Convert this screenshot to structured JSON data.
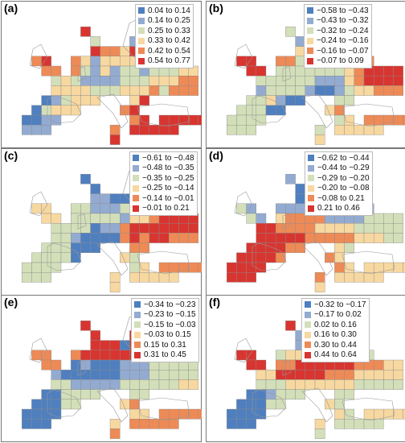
{
  "colors": [
    "#4f7fbf",
    "#93abd1",
    "#d3dfb9",
    "#f7d8a0",
    "#ee8a56",
    "#d83530"
  ],
  "panels": [
    {
      "label": "(a)",
      "legend": [
        "0.04 to 0.14",
        "0.14 to 0.25",
        "0.25 to 0.33",
        "0.33 to 0.42",
        "0.42 to 0.54",
        "0.54 to 0.77"
      ]
    },
    {
      "label": "(b)",
      "legend": [
        "−0.58 to −0.43",
        "−0.43 to −0.32",
        "−0.32 to −0.24",
        "−0.24 to −0.16",
        "−0.16 to −0.07",
        "−0.07 to  0.09"
      ]
    },
    {
      "label": "(c)",
      "legend": [
        "−0.61 to −0.48",
        "−0.48 to −0.35",
        "−0.35 to −0.25",
        "−0.25 to −0.14",
        "−0.14 to −0.01",
        "−0.01 to  0.21"
      ]
    },
    {
      "label": "(d)",
      "legend": [
        "−0.62 to −0.44",
        "−0.44 to −0.29",
        "−0.29 to −0.20",
        "−0.20 to −0.08",
        "−0.08 to  0.21",
        " 0.21 to  0.46"
      ]
    },
    {
      "label": "(e)",
      "legend": [
        "−0.34 to −0.23",
        "−0.23 to −0.15",
        "−0.15 to −0.03",
        "−0.03 to  0.15",
        " 0.15 to  0.31",
        " 0.31 to  0.45"
      ]
    },
    {
      "label": "(f)",
      "legend": [
        "−0.32 to −0.17",
        "−0.17 to  0.02",
        " 0.02 to  0.16",
        " 0.16 to  0.30",
        " 0.30 to  0.44",
        " 0.44 to  0.64"
      ]
    }
  ]
}
